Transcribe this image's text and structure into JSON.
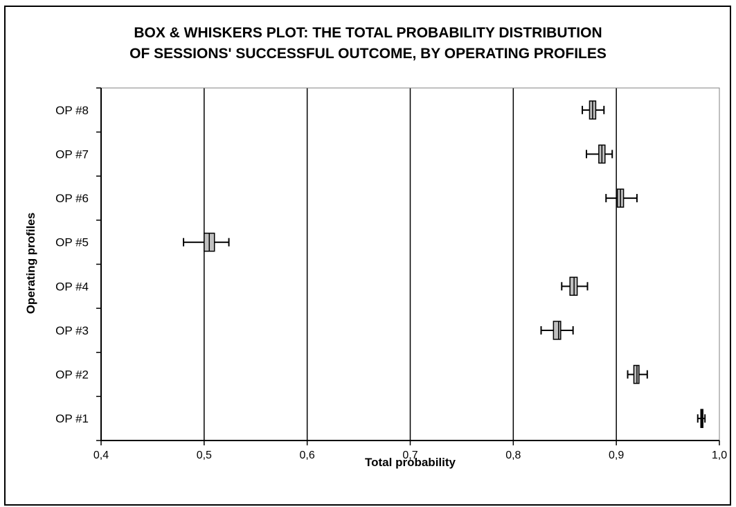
{
  "chart_data": {
    "type": "boxplot",
    "orientation": "horizontal",
    "title_lines": [
      "BOX & WHISKERS PLOT: THE TOTAL PROBABILITY DISTRIBUTION",
      "OF SESSIONS' SUCCESSFUL OUTCOME, BY OPERATING PROFILES"
    ],
    "xlabel": "Total probability",
    "ylabel": "Operating profiles",
    "xlim": [
      0.4,
      1.0
    ],
    "xticks": [
      0.4,
      0.5,
      0.6,
      0.7,
      0.8,
      0.9,
      1.0
    ],
    "xtick_labels": [
      "0,4",
      "0,5",
      "0,6",
      "0,7",
      "0,8",
      "0,9",
      "1,0"
    ],
    "grid": "vertical major gridlines",
    "box_color": "#c0c0c0",
    "categories": [
      "OP #1",
      "OP #2",
      "OP #3",
      "OP #4",
      "OP #5",
      "OP #6",
      "OP #7",
      "OP #8"
    ],
    "boxes": [
      {
        "label": "OP #1",
        "whisker_low": 0.979,
        "q1": 0.982,
        "median": 0.983,
        "q3": 0.984,
        "whisker_high": 0.986
      },
      {
        "label": "OP #2",
        "whisker_low": 0.911,
        "q1": 0.917,
        "median": 0.92,
        "q3": 0.922,
        "whisker_high": 0.93
      },
      {
        "label": "OP #3",
        "whisker_low": 0.827,
        "q1": 0.839,
        "median": 0.844,
        "q3": 0.846,
        "whisker_high": 0.858
      },
      {
        "label": "OP #4",
        "whisker_low": 0.847,
        "q1": 0.855,
        "median": 0.859,
        "q3": 0.862,
        "whisker_high": 0.872
      },
      {
        "label": "OP #5",
        "whisker_low": 0.48,
        "q1": 0.5,
        "median": 0.505,
        "q3": 0.51,
        "whisker_high": 0.524
      },
      {
        "label": "OP #6",
        "whisker_low": 0.89,
        "q1": 0.901,
        "median": 0.904,
        "q3": 0.907,
        "whisker_high": 0.92
      },
      {
        "label": "OP #7",
        "whisker_low": 0.871,
        "q1": 0.883,
        "median": 0.886,
        "q3": 0.889,
        "whisker_high": 0.896
      },
      {
        "label": "OP #8",
        "whisker_low": 0.867,
        "q1": 0.874,
        "median": 0.877,
        "q3": 0.88,
        "whisker_high": 0.888
      }
    ]
  }
}
